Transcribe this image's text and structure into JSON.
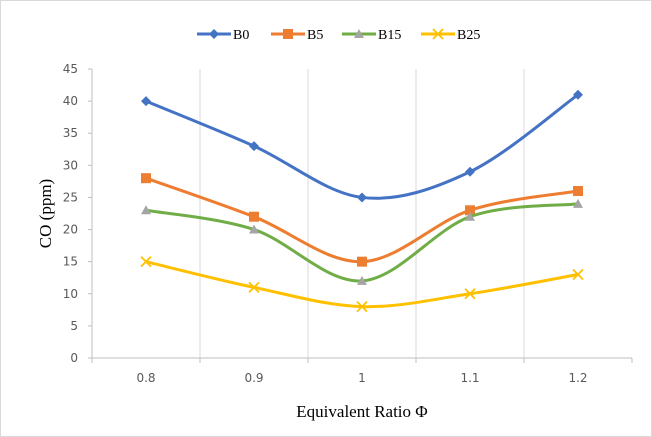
{
  "chart_data": {
    "type": "line",
    "title": "",
    "xlabel": "Equivalent Ratio Φ",
    "ylabel": "CO (ppm)",
    "categories": [
      "0.8",
      "0.9",
      "1",
      "1.1",
      "1.2"
    ],
    "ylim": [
      0,
      45
    ],
    "yticks": [
      0,
      5,
      10,
      15,
      20,
      25,
      30,
      35,
      40,
      45
    ],
    "grid": "vertical",
    "legend_position": "top",
    "smooth": true,
    "series": [
      {
        "name": "B0",
        "values": [
          40,
          33,
          25,
          29,
          41
        ],
        "color": "#4472c4",
        "marker": "diamond"
      },
      {
        "name": "B5",
        "values": [
          28,
          22,
          15,
          23,
          26
        ],
        "color": "#ed7d31",
        "marker": "square"
      },
      {
        "name": "B15",
        "values": [
          23,
          20,
          12,
          22,
          24
        ],
        "color": "#70ad47",
        "marker": "triangle"
      },
      {
        "name": "B25",
        "values": [
          15,
          11,
          8,
          10,
          13
        ],
        "color": "#ffc000",
        "marker": "x"
      }
    ]
  }
}
